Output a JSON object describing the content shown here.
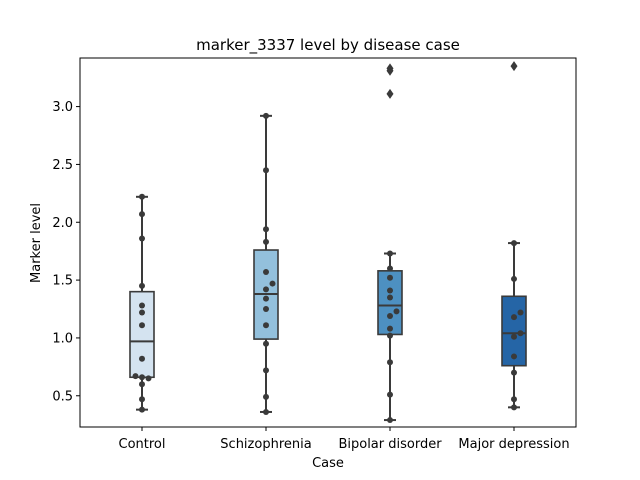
{
  "chart_data": {
    "type": "box",
    "title": "marker_3337 level by disease case",
    "xlabel": "Case",
    "ylabel": "Marker level",
    "ylim": [
      0.23,
      3.42
    ],
    "yticks": [
      "0.5",
      "1.0",
      "1.5",
      "2.0",
      "2.5",
      "3.0"
    ],
    "categories": [
      "Control",
      "Schizophrenia",
      "Bipolar disorder",
      "Major depression"
    ],
    "colors": [
      "#d4e3f0",
      "#93c0dc",
      "#4d90c1",
      "#2565a6"
    ],
    "boxes": [
      {
        "category": "Control",
        "q1": 0.66,
        "median": 0.97,
        "q3": 1.4,
        "whisker_low": 0.38,
        "whisker_high": 2.22,
        "outliers": [],
        "points": [
          0.38,
          0.47,
          0.6,
          0.65,
          0.66,
          0.67,
          0.82,
          1.11,
          1.22,
          1.28,
          1.45,
          1.86,
          2.07,
          2.22
        ]
      },
      {
        "category": "Schizophrenia",
        "q1": 0.99,
        "median": 1.38,
        "q3": 1.76,
        "whisker_low": 0.36,
        "whisker_high": 2.92,
        "outliers": [],
        "points": [
          0.36,
          0.49,
          0.72,
          0.95,
          1.11,
          1.25,
          1.34,
          1.42,
          1.47,
          1.57,
          1.83,
          1.94,
          2.45,
          2.92
        ]
      },
      {
        "category": "Bipolar disorder",
        "q1": 1.03,
        "median": 1.28,
        "q3": 1.58,
        "whisker_low": 0.29,
        "whisker_high": 1.73,
        "outliers": [
          3.11,
          3.31,
          3.33
        ],
        "points": [
          0.29,
          0.51,
          0.79,
          1.02,
          1.08,
          1.19,
          1.23,
          1.35,
          1.41,
          1.52,
          1.6,
          1.73
        ]
      },
      {
        "category": "Major depression",
        "q1": 0.76,
        "median": 1.04,
        "q3": 1.36,
        "whisker_low": 0.4,
        "whisker_high": 1.82,
        "outliers": [
          3.35
        ],
        "points": [
          0.4,
          0.47,
          0.7,
          0.84,
          1.01,
          1.04,
          1.18,
          1.22,
          1.51,
          1.82
        ]
      }
    ]
  }
}
